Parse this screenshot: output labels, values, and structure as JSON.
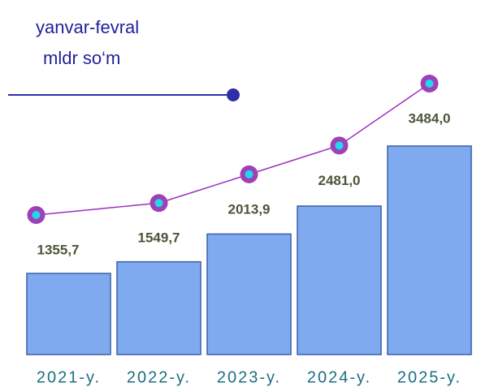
{
  "chart_data": {
    "type": "bar_line",
    "title": "yanvar-fevral",
    "subtitle": "mldr so‘m",
    "categories": [
      "2021-y.",
      "2022-y.",
      "2023-y.",
      "2024-y.",
      "2025-y."
    ],
    "values": [
      1355.7,
      1549.7,
      2013.9,
      2481.0,
      3484.0
    ],
    "value_labels": [
      "1355,7",
      "1549,7",
      "2013,9",
      "2481,0",
      "3484,0"
    ],
    "bar_color": "#80aaf0",
    "line_color": "#9b30c0",
    "marker_color": "#a040b8",
    "marker_center_color": "#20d8e8"
  }
}
